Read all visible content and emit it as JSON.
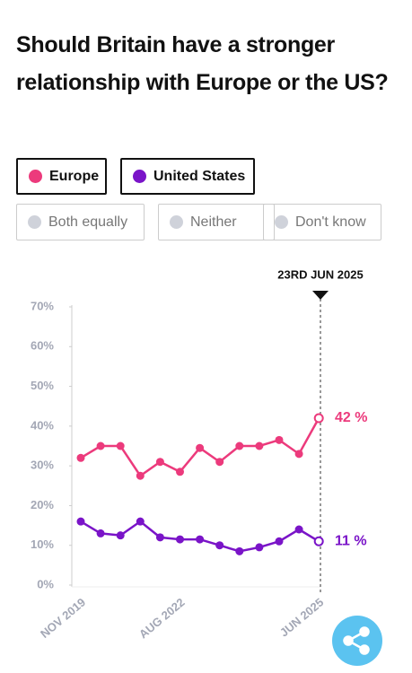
{
  "chart_data": {
    "type": "line",
    "title": "Should Britain have a stronger relationship with Europe or the US?",
    "categories": [
      "NOV 2019",
      null,
      null,
      null,
      null,
      "AUG 2022",
      null,
      null,
      null,
      null,
      null,
      null,
      "JUN 2025"
    ],
    "series": [
      {
        "name": "Europe",
        "color": "#ec3a7c",
        "values": [
          32,
          35,
          35,
          27.5,
          31,
          28.5,
          34.5,
          31,
          35,
          35,
          36.5,
          33,
          42
        ],
        "value_labels": [
          null,
          null,
          null,
          null,
          null,
          null,
          null,
          null,
          null,
          null,
          null,
          null,
          "42 %"
        ]
      },
      {
        "name": "United States",
        "color": "#7a14c8",
        "values": [
          16,
          13,
          12.5,
          16,
          12,
          11.5,
          11.5,
          10,
          8.5,
          9.5,
          11,
          14,
          11
        ],
        "value_labels": [
          null,
          null,
          null,
          null,
          null,
          null,
          null,
          null,
          null,
          null,
          null,
          null,
          "11 %"
        ]
      }
    ],
    "other_options": [
      "Both equally",
      "Neither",
      "Don't know"
    ],
    "marker_label": "23RD JUN 2025",
    "ylim": [
      0,
      70
    ],
    "yticks": [
      {
        "value": 0,
        "label": "0%"
      },
      {
        "value": 10,
        "label": "10%"
      },
      {
        "value": 20,
        "label": "20%"
      },
      {
        "value": 30,
        "label": "30%"
      },
      {
        "value": 40,
        "label": "40%"
      },
      {
        "value": 50,
        "label": "50%"
      },
      {
        "value": 60,
        "label": "60%"
      },
      {
        "value": 70,
        "label": "70%"
      }
    ],
    "grid": false
  }
}
